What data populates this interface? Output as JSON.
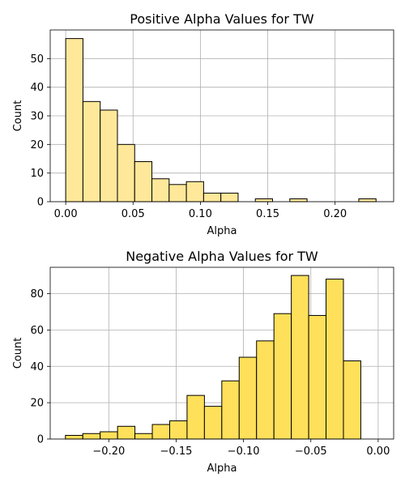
{
  "chart_data": [
    {
      "type": "bar",
      "title": "Positive Alpha Values for TW",
      "xlabel": "Alpha",
      "ylabel": "Count",
      "color": "#ffe899",
      "xlim": [
        -0.0115,
        0.2435
      ],
      "ylim": [
        0,
        60
      ],
      "grid": true,
      "xticks": [
        0.0,
        0.05,
        0.1,
        0.15,
        0.2
      ],
      "xtick_labels": [
        "0.00",
        "0.05",
        "0.10",
        "0.15",
        "0.20"
      ],
      "yticks": [
        0,
        10,
        20,
        30,
        40,
        50
      ],
      "ytick_labels": [
        "0",
        "10",
        "20",
        "30",
        "40",
        "50"
      ],
      "bin_width": 0.0128,
      "bin_edges_start": 0.0,
      "values": [
        57,
        35,
        32,
        20,
        14,
        8,
        6,
        7,
        3,
        3,
        0,
        1,
        0,
        1,
        0,
        0,
        0,
        1
      ]
    },
    {
      "type": "bar",
      "title": "Negative Alpha Values for TW",
      "xlabel": "Alpha",
      "ylabel": "Count",
      "color": "#ffe05a",
      "xlim": [
        -0.2435,
        0.0115
      ],
      "ylim": [
        0,
        94.5
      ],
      "grid": true,
      "xticks": [
        -0.2,
        -0.15,
        -0.1,
        -0.05,
        0.0
      ],
      "xtick_labels": [
        "−0.20",
        "−0.15",
        "−0.10",
        "−0.05",
        "0.00"
      ],
      "yticks": [
        0,
        20,
        40,
        60,
        80
      ],
      "ytick_labels": [
        "0",
        "20",
        "40",
        "60",
        "80"
      ],
      "bin_width": 0.0129,
      "bin_edges_start": -0.2322,
      "values": [
        2,
        3,
        4,
        7,
        3,
        8,
        10,
        24,
        18,
        32,
        45,
        54,
        69,
        90,
        68,
        88,
        43
      ]
    }
  ]
}
